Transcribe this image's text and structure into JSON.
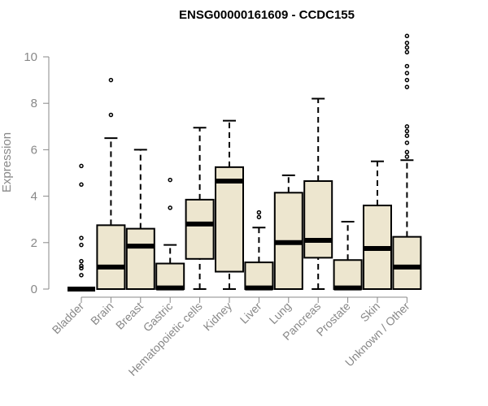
{
  "chart_data": {
    "type": "boxplot",
    "title": "ENSG00000161609 - CCDC155",
    "xlabel": "",
    "ylabel": "Expression",
    "ylim": [
      0,
      10
    ],
    "yticks": [
      "0",
      "2",
      "4",
      "6",
      "8",
      "10"
    ],
    "colors": {
      "box_fill": "#ede6cf",
      "stroke": "#000000",
      "axis": "#888888"
    },
    "categories": [
      "Bladder",
      "Brain",
      "Breast",
      "Gastric",
      "Hematopoietic cells",
      "Kidney",
      "Liver",
      "Lung",
      "Pancreas",
      "Prostate",
      "Skin",
      "Unknown / Other"
    ],
    "boxes": [
      {
        "min": 0,
        "q1": 0,
        "median": 0,
        "q3": 0,
        "max": 0,
        "outliers": [
          0.6,
          0.9,
          1.0,
          1.2,
          1.9,
          2.2,
          4.5,
          5.3
        ]
      },
      {
        "min": 0,
        "q1": 0,
        "median": 0.95,
        "q3": 2.75,
        "max": 6.5,
        "outliers": [
          7.5,
          9.0
        ]
      },
      {
        "min": 0,
        "q1": 0,
        "median": 1.85,
        "q3": 2.6,
        "max": 6.0,
        "outliers": []
      },
      {
        "min": 0,
        "q1": 0,
        "median": 0.05,
        "q3": 1.1,
        "max": 1.9,
        "outliers": [
          3.5,
          4.7
        ]
      },
      {
        "min": 0,
        "q1": 1.3,
        "median": 2.8,
        "q3": 3.85,
        "max": 6.95,
        "outliers": []
      },
      {
        "min": 0,
        "q1": 0.75,
        "median": 4.65,
        "q3": 5.25,
        "max": 7.25,
        "outliers": []
      },
      {
        "min": 0,
        "q1": 0,
        "median": 0.05,
        "q3": 1.15,
        "max": 2.65,
        "outliers": [
          3.1,
          3.3
        ]
      },
      {
        "min": 0,
        "q1": 0,
        "median": 2.0,
        "q3": 4.15,
        "max": 4.9,
        "outliers": []
      },
      {
        "min": 0,
        "q1": 1.35,
        "median": 2.1,
        "q3": 4.65,
        "max": 8.2,
        "outliers": []
      },
      {
        "min": 0,
        "q1": 0,
        "median": 0.05,
        "q3": 1.25,
        "max": 2.9,
        "outliers": []
      },
      {
        "min": 0,
        "q1": 0,
        "median": 1.75,
        "q3": 3.6,
        "max": 5.5,
        "outliers": []
      },
      {
        "min": 0,
        "q1": 0,
        "median": 0.95,
        "q3": 2.25,
        "max": 5.55,
        "outliers": [
          5.7,
          5.9,
          6.3,
          6.6,
          6.8,
          7.0,
          8.7,
          9.0,
          9.3,
          9.6,
          10.2,
          10.4,
          10.6,
          10.9
        ]
      }
    ]
  }
}
